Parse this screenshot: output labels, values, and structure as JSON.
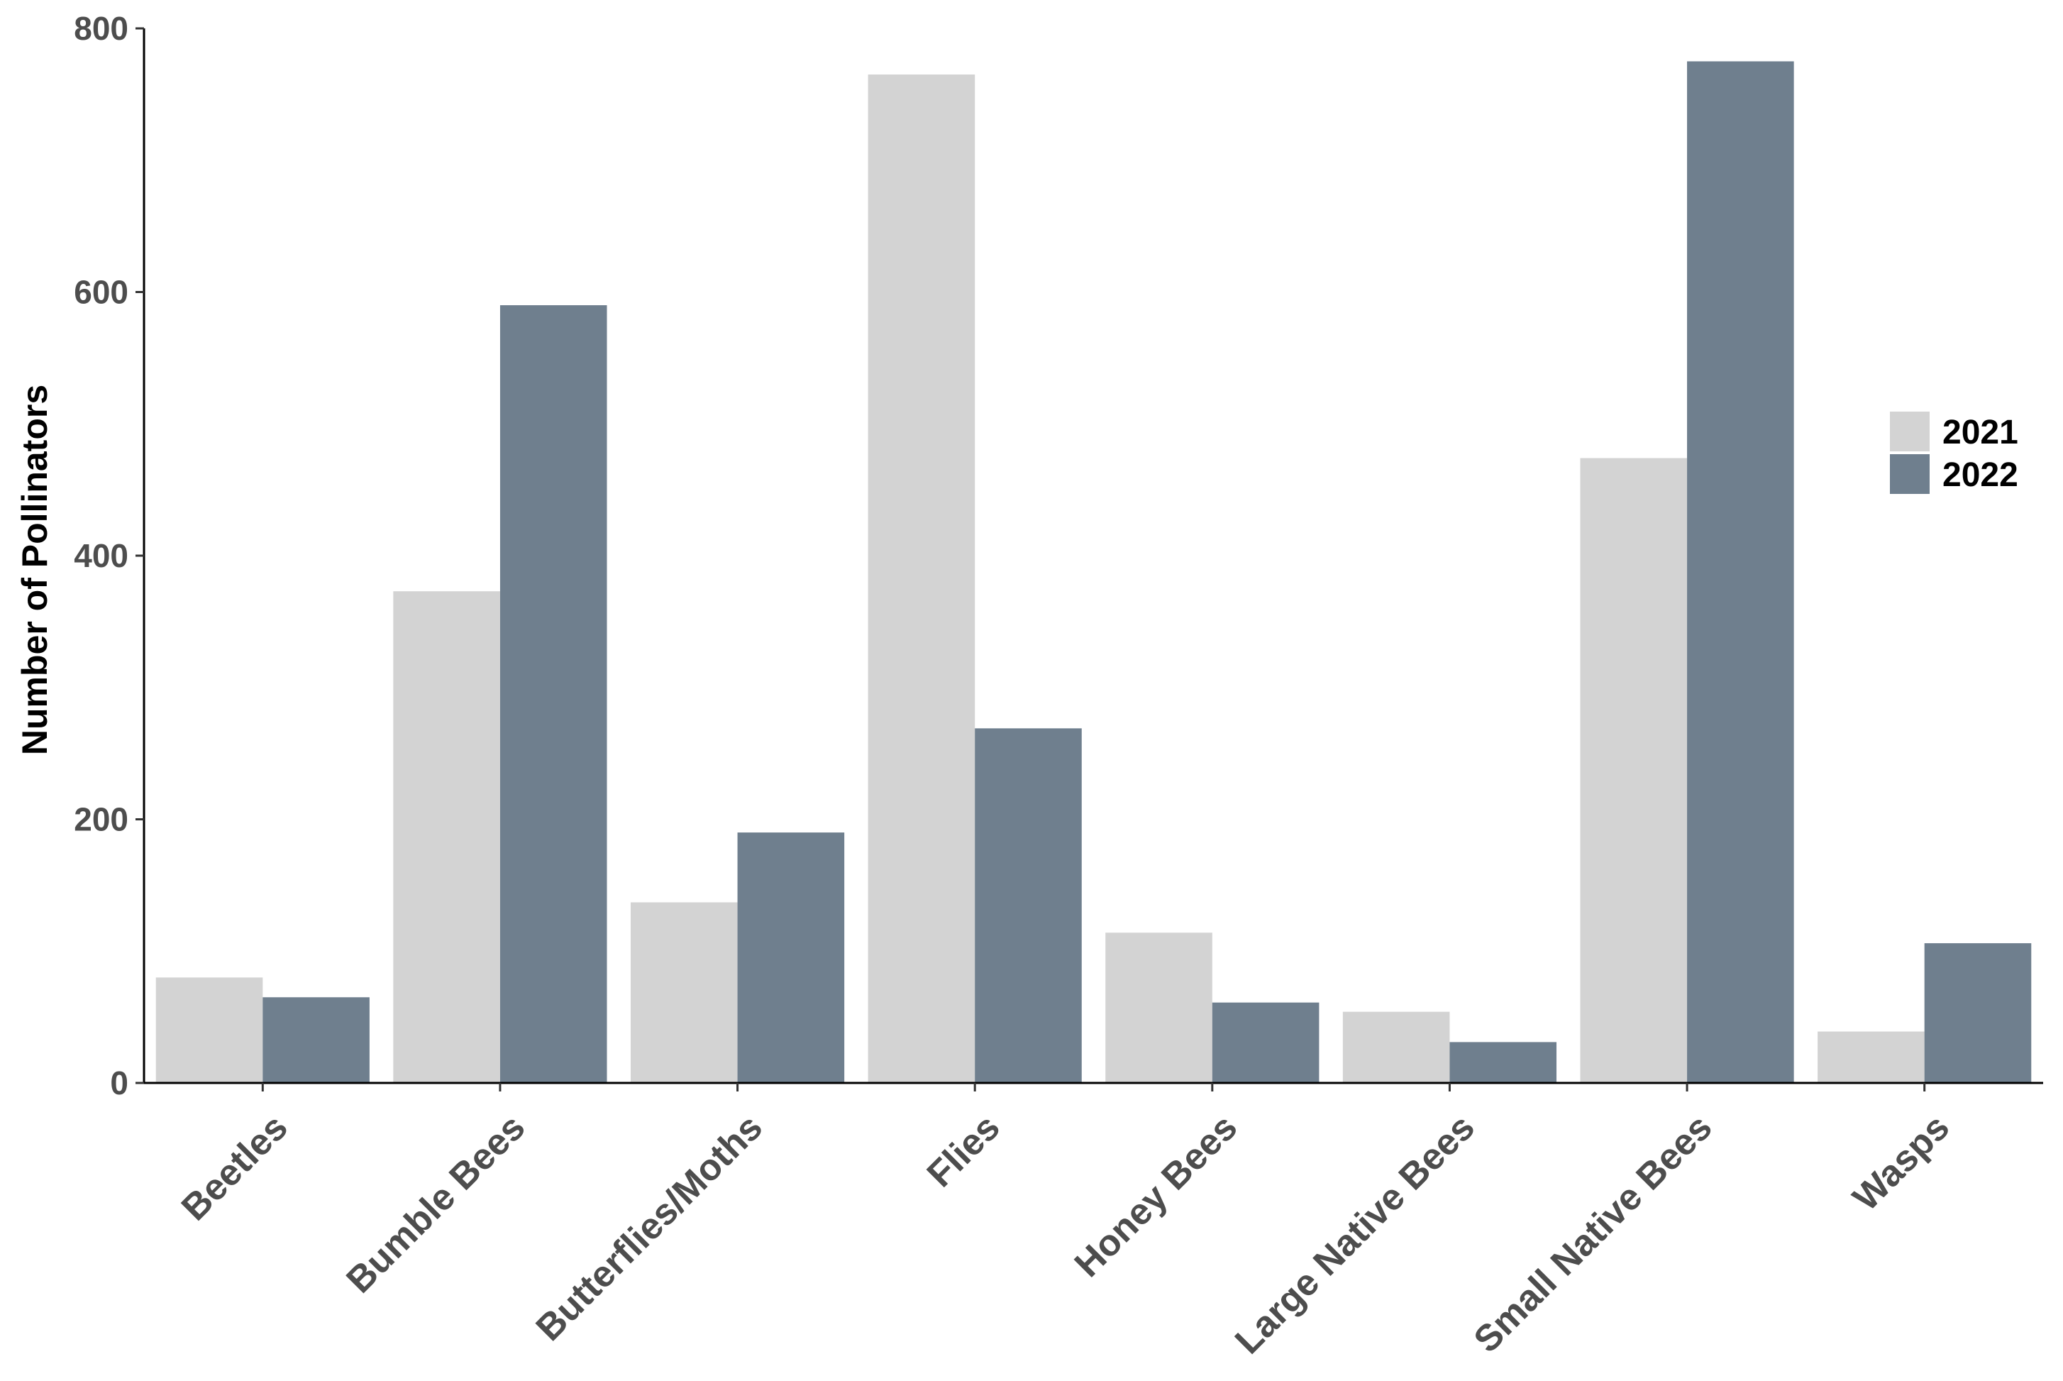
{
  "chart_data": {
    "type": "bar",
    "title": "",
    "xlabel": "",
    "ylabel": "Number of Pollinators",
    "ylim": [
      0,
      800
    ],
    "yticks": [
      0,
      200,
      400,
      600,
      800
    ],
    "grid": false,
    "legend_position": "right",
    "categories": [
      "Beetles",
      "Bumble Bees",
      "Butterflies/Moths",
      "Flies",
      "Honey Bees",
      "Large Native Bees",
      "Small Native Bees",
      "Wasps"
    ],
    "series": [
      {
        "name": "2021",
        "color": "#d3d3d3",
        "values": [
          80,
          373,
          137,
          765,
          114,
          54,
          474,
          39
        ]
      },
      {
        "name": "2022",
        "color": "#6f7f8e",
        "values": [
          65,
          590,
          190,
          269,
          61,
          31,
          775,
          106
        ]
      }
    ]
  }
}
